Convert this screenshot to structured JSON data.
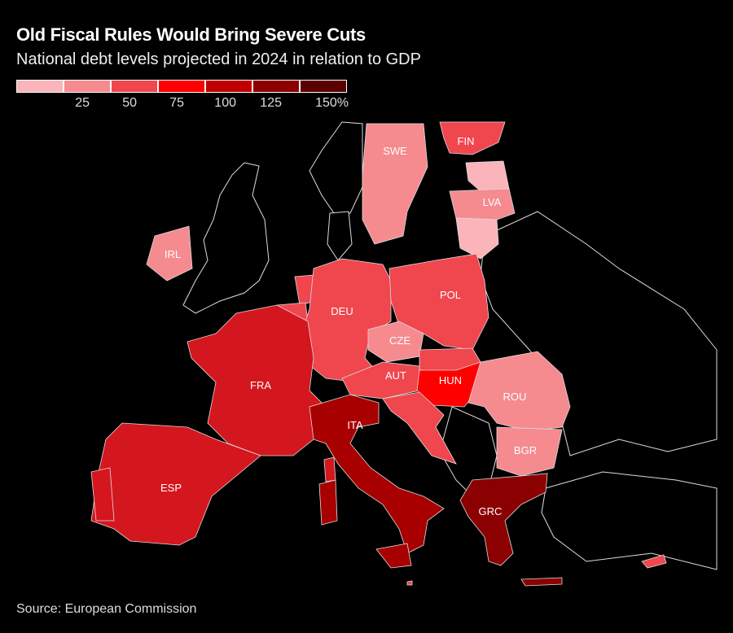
{
  "title": "Old Fiscal Rules Would Bring Severe Cuts",
  "subtitle": "National debt levels projected in 2024 in relation to GDP",
  "legend": {
    "labels": [
      "25",
      "50",
      "75",
      "100",
      "125",
      "150%"
    ],
    "colors": [
      "#fbb4b9",
      "#f58a8f",
      "#f0464e",
      "#ff0000",
      "#c00000",
      "#8b0000",
      "#5a0000"
    ]
  },
  "source": "Source: European Commission",
  "countries": [
    {
      "code": "FIN",
      "color": "#f0464e"
    },
    {
      "code": "SWE",
      "color": "#f58a8f"
    },
    {
      "code": "LVA",
      "color": "#f58a8f"
    },
    {
      "code": "IRL",
      "color": "#f58a8f"
    },
    {
      "code": "DEU",
      "color": "#f0464e"
    },
    {
      "code": "POL",
      "color": "#f0464e"
    },
    {
      "code": "CZE",
      "color": "#f58a8f"
    },
    {
      "code": "AUT",
      "color": "#f0464e"
    },
    {
      "code": "HUN",
      "color": "#ff0000"
    },
    {
      "code": "ROU",
      "color": "#f58a8f"
    },
    {
      "code": "BGR",
      "color": "#f58a8f"
    },
    {
      "code": "FRA",
      "color": "#d4161e"
    },
    {
      "code": "ESP",
      "color": "#d4161e"
    },
    {
      "code": "ITA",
      "color": "#a80000"
    },
    {
      "code": "GRC",
      "color": "#8b0000"
    }
  ]
}
